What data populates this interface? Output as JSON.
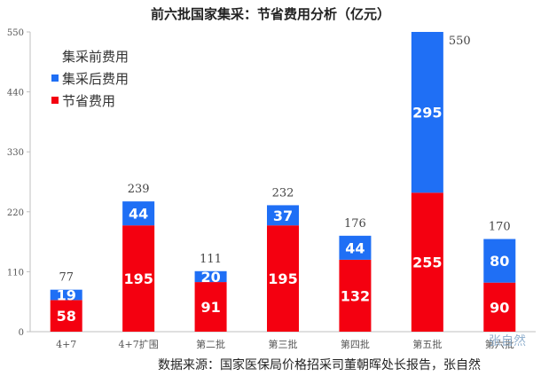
{
  "title": "前六批国家集采：节省费用分析（亿元）",
  "source": "数据来源：国家医保局价格招采司董朝晖处长报告，张自然",
  "watermark": "张自然",
  "colors": {
    "after": "#1f6ff5",
    "saved": "#f40010",
    "axis": "#bfbfbf",
    "grid": "#e3e3e3"
  },
  "chart_data": {
    "type": "bar",
    "stacked": true,
    "categories": [
      "4+7",
      "4+7扩围",
      "第二批",
      "第三批",
      "第四批",
      "第五批",
      "第六批"
    ],
    "series": [
      {
        "name": "节省费用",
        "values": [
          58,
          195,
          91,
          195,
          132,
          255,
          90
        ]
      },
      {
        "name": "集采后费用",
        "values": [
          19,
          44,
          20,
          37,
          44,
          295,
          80
        ]
      }
    ],
    "totals": [
      77,
      239,
      111,
      232,
      176,
      550,
      170
    ],
    "legend": [
      "集采前费用",
      "集采后费用",
      "节省费用"
    ],
    "legend_position": "top-left",
    "ylim": [
      0,
      550
    ],
    "yticks": [
      0,
      110,
      220,
      330,
      440,
      550
    ],
    "grid": false
  }
}
